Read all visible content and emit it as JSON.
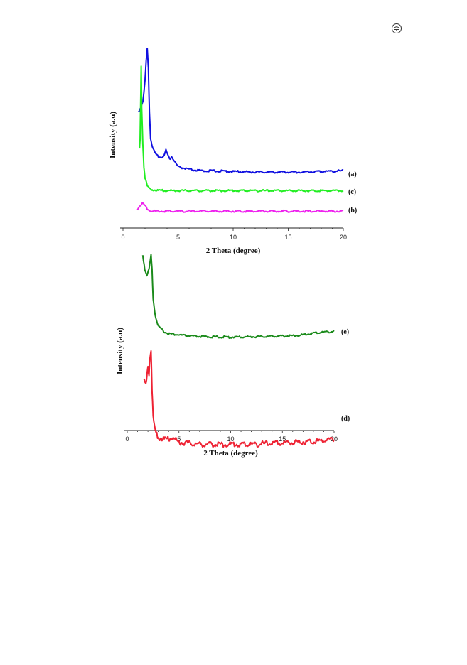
{
  "corner_mark_icon": "circled-seal-icon",
  "chart_data": [
    {
      "type": "line",
      "xlabel": "2 Theta (degree)",
      "ylabel": "Intensity (a.u)",
      "xlim": [
        0,
        20
      ],
      "xticks": [
        "0",
        "5",
        "10",
        "15",
        "20"
      ],
      "series": [
        {
          "name": "(a)",
          "color": "#1010e0",
          "x": [
            1.4,
            1.6,
            1.8,
            1.9,
            2.0,
            2.1,
            2.2,
            2.3,
            2.4,
            2.5,
            2.7,
            3.0,
            3.5,
            3.8,
            3.9,
            4.1,
            4.3,
            4.4,
            4.6,
            5.0,
            5.5,
            6.0,
            7.0,
            8.0,
            10.0,
            12.0,
            14.0,
            16.0,
            18.0,
            20.0
          ],
          "y": [
            0.52,
            0.55,
            0.6,
            0.66,
            0.76,
            0.9,
            1.0,
            0.86,
            0.52,
            0.32,
            0.24,
            0.19,
            0.17,
            0.2,
            0.23,
            0.18,
            0.16,
            0.18,
            0.15,
            0.1,
            0.09,
            0.08,
            0.07,
            0.07,
            0.065,
            0.06,
            0.06,
            0.06,
            0.065,
            0.07
          ]
        },
        {
          "name": "(c)",
          "color": "#22ee22",
          "x": [
            1.5,
            1.55,
            1.6,
            1.65,
            1.7,
            1.8,
            1.9,
            2.0,
            2.2,
            2.5,
            3.0,
            4.0,
            6.0,
            8.0,
            10.0,
            12.0,
            15.0,
            18.0,
            20.0
          ],
          "y": [
            0.3,
            0.36,
            0.62,
            0.88,
            0.6,
            0.34,
            0.18,
            0.1,
            0.04,
            0.02,
            0.012,
            0.01,
            0.01,
            0.01,
            0.01,
            0.01,
            0.01,
            0.01,
            0.01
          ]
        },
        {
          "name": "(b)",
          "color": "#ee22ee",
          "x": [
            1.3,
            1.5,
            1.7,
            1.8,
            2.0,
            2.2,
            2.4,
            2.7,
            3.0,
            4.0,
            6.0,
            8.0,
            10.0,
            12.0,
            15.0,
            18.0,
            20.0
          ],
          "y": [
            0.01,
            0.024,
            0.034,
            0.036,
            0.026,
            0.012,
            0.004,
            0.001,
            0.0,
            0.0,
            0.0,
            0.0,
            0.0,
            0.0,
            0.0,
            0.0,
            0.0
          ]
        }
      ]
    },
    {
      "type": "line",
      "xlabel": "2 Theta (degree)",
      "ylabel": "Intensity (a.u)",
      "xlim": [
        0,
        20
      ],
      "xticks": [
        "0",
        "5",
        "10",
        "15",
        "20"
      ],
      "series": [
        {
          "name": "(e)",
          "color": "#1a8a1a",
          "x": [
            1.5,
            1.7,
            1.9,
            2.1,
            2.3,
            2.4,
            2.5,
            2.7,
            3.0,
            3.3,
            3.6,
            4.0,
            4.5,
            5.0,
            5.5,
            6.0,
            7.0,
            8.0,
            10.0,
            12.0,
            14.0,
            16.0,
            17.0,
            18.0,
            19.0,
            20.0
          ],
          "y": [
            0.95,
            0.9,
            0.88,
            0.9,
            0.95,
            0.9,
            0.8,
            0.74,
            0.7,
            0.69,
            0.68,
            0.675,
            0.672,
            0.67,
            0.668,
            0.666,
            0.664,
            0.663,
            0.662,
            0.663,
            0.665,
            0.667,
            0.67,
            0.676,
            0.68,
            0.682
          ]
        },
        {
          "name": "(d)",
          "color": "#ee2233",
          "x": [
            1.6,
            1.8,
            2.0,
            2.1,
            2.2,
            2.3,
            2.4,
            2.5,
            2.7,
            3.0,
            3.5,
            4.0,
            4.3,
            4.7,
            5.0,
            6.0,
            7.0,
            8.0,
            10.0,
            12.0,
            14.0,
            16.0,
            18.0,
            19.0,
            20.0
          ],
          "y": [
            0.52,
            0.5,
            0.58,
            0.56,
            0.64,
            0.68,
            0.48,
            0.34,
            0.28,
            0.25,
            0.24,
            0.24,
            0.25,
            0.235,
            0.225,
            0.22,
            0.215,
            0.215,
            0.215,
            0.215,
            0.22,
            0.225,
            0.23,
            0.235,
            0.24
          ]
        }
      ]
    }
  ]
}
